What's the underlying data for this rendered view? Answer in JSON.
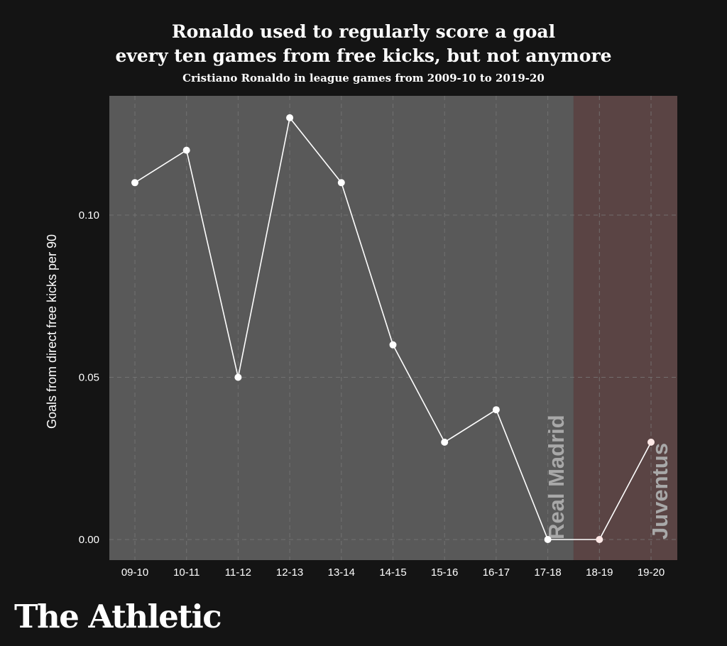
{
  "title_line1": "Ronaldo used to regularly score a goal",
  "title_line2": "every ten games from free kicks, but not anymore",
  "subtitle": "Cristiano Ronaldo in league games from 2009-10 to 2019-20",
  "brand": "The Athletic",
  "chart_data": {
    "type": "line",
    "title": "Ronaldo used to regularly score a goal every ten games from free kicks, but not anymore",
    "subtitle": "Cristiano Ronaldo in league games from 2009-10 to 2019-20",
    "xlabel": "",
    "ylabel": "Goals from direct free kicks per 90",
    "categories": [
      "09-10",
      "10-11",
      "11-12",
      "12-13",
      "13-14",
      "14-15",
      "15-16",
      "16-17",
      "17-18",
      "18-19",
      "19-20"
    ],
    "series": [
      {
        "name": "Goals from direct free kicks per 90",
        "values": [
          0.11,
          0.12,
          0.05,
          0.13,
          0.11,
          0.06,
          0.03,
          0.04,
          0.0,
          0.0,
          0.03
        ]
      }
    ],
    "ylim": [
      -0.0065,
      0.136
    ],
    "yticks": [
      0.0,
      0.05,
      0.1
    ],
    "ytick_labels": [
      "0.00",
      "0.05",
      "0.10"
    ],
    "grid": true,
    "regions": [
      {
        "label": "Real Madrid",
        "from": "09-10",
        "to": "17-18",
        "color": "#595959"
      },
      {
        "label": "Juventus",
        "from": "18-19",
        "to": "19-20",
        "color": "#5a4444"
      }
    ],
    "colors": {
      "line": "#ffffff",
      "point_madrid": "#ffffff",
      "point_juventus": "#fde8e6",
      "grid": "#787878",
      "region_label": "#a8a8a8"
    }
  }
}
